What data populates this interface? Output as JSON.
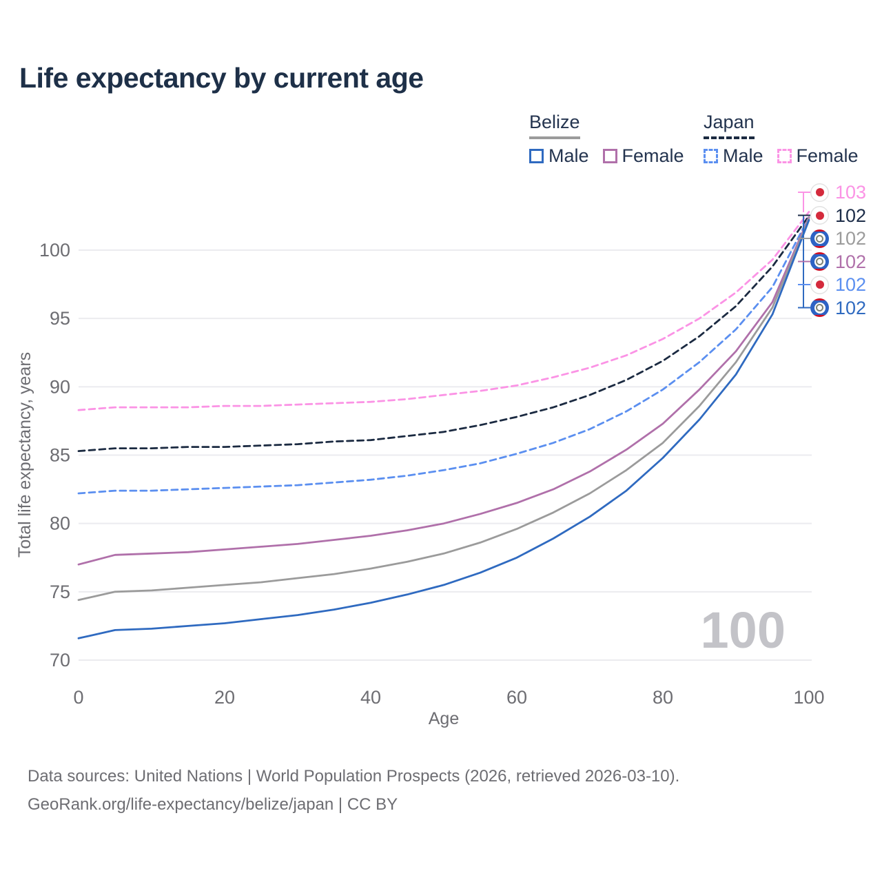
{
  "title": "Life expectancy by current age",
  "legend": {
    "belize": {
      "title": "Belize",
      "male": "Male",
      "female": "Female"
    },
    "japan": {
      "title": "Japan",
      "male": "Male",
      "female": "Female"
    }
  },
  "colors": {
    "belize_male": "#2f6ac0",
    "belize_female": "#b070aa",
    "belize_total": "#9b9b9b",
    "japan_male": "#5b8ff0",
    "japan_female": "#fb93e5",
    "japan_total": "#1b2a41",
    "axis_text": "#6d6d72",
    "gridline": "#ebebef",
    "title_text": "#1e3048"
  },
  "age_indicator": "100",
  "footer": {
    "line1": "Data sources: United Nations | World Population Prospects (2026, retrieved 2026-03-10).",
    "line2": "GeoRank.org/life-expectancy/belize/japan | CC BY"
  },
  "end_labels": [
    {
      "text": "103",
      "color": "#fb93e5",
      "flag": "jp",
      "series": "japan-female"
    },
    {
      "text": "102",
      "color": "#1d2d49",
      "flag": "jp",
      "series": "japan-total"
    },
    {
      "text": "102",
      "color": "#9b9b9b",
      "flag": "bz",
      "series": "belize-total"
    },
    {
      "text": "102",
      "color": "#b070aa",
      "flag": "bz",
      "series": "belize-female"
    },
    {
      "text": "102",
      "color": "#5b8ff0",
      "flag": "jp",
      "series": "japan-male"
    },
    {
      "text": "102",
      "color": "#2f6ac0",
      "flag": "bz",
      "series": "belize-male"
    }
  ],
  "chart_data": {
    "type": "line",
    "title": "Life expectancy by current age",
    "xlabel": "Age",
    "ylabel": "Total life expectancy, years",
    "xlim": [
      0,
      100
    ],
    "ylim": [
      70,
      103
    ],
    "xticks": [
      0,
      20,
      40,
      60,
      80,
      100
    ],
    "yticks": [
      70,
      75,
      80,
      85,
      90,
      95,
      100
    ],
    "grid": "horizontal",
    "legend_position": "top-right",
    "x": [
      0,
      5,
      10,
      15,
      20,
      25,
      30,
      35,
      40,
      45,
      50,
      55,
      60,
      65,
      70,
      75,
      80,
      85,
      90,
      95,
      100
    ],
    "series": [
      {
        "name": "Japan Female",
        "id": "japan-female",
        "color": "#fb93e5",
        "dashed": true,
        "values": [
          88.3,
          88.5,
          88.5,
          88.5,
          88.6,
          88.6,
          88.7,
          88.8,
          88.9,
          89.1,
          89.4,
          89.7,
          90.1,
          90.7,
          91.4,
          92.3,
          93.5,
          95.0,
          96.9,
          99.3,
          102.8
        ]
      },
      {
        "name": "Japan Total",
        "id": "japan-total",
        "color": "#1b2a41",
        "dashed": true,
        "values": [
          85.3,
          85.5,
          85.5,
          85.6,
          85.6,
          85.7,
          85.8,
          86.0,
          86.1,
          86.4,
          86.7,
          87.2,
          87.8,
          88.5,
          89.4,
          90.5,
          91.9,
          93.7,
          95.9,
          98.8,
          102.5
        ]
      },
      {
        "name": "Japan Male",
        "id": "japan-male",
        "color": "#5b8ff0",
        "dashed": true,
        "values": [
          82.2,
          82.4,
          82.4,
          82.5,
          82.6,
          82.7,
          82.8,
          83.0,
          83.2,
          83.5,
          83.9,
          84.4,
          85.1,
          85.9,
          86.9,
          88.2,
          89.8,
          91.8,
          94.2,
          97.3,
          102.4
        ]
      },
      {
        "name": "Belize Female",
        "id": "belize-female",
        "color": "#b070aa",
        "dashed": false,
        "values": [
          77.0,
          77.7,
          77.8,
          77.9,
          78.1,
          78.3,
          78.5,
          78.8,
          79.1,
          79.5,
          80.0,
          80.7,
          81.5,
          82.5,
          83.8,
          85.4,
          87.3,
          89.8,
          92.6,
          96.2,
          102.4
        ]
      },
      {
        "name": "Belize Total",
        "id": "belize-total",
        "color": "#9b9b9b",
        "dashed": false,
        "values": [
          74.4,
          75.0,
          75.1,
          75.3,
          75.5,
          75.7,
          76.0,
          76.3,
          76.7,
          77.2,
          77.8,
          78.6,
          79.6,
          80.8,
          82.2,
          83.9,
          85.9,
          88.6,
          91.8,
          95.8,
          102.3
        ]
      },
      {
        "name": "Belize Male",
        "id": "belize-male",
        "color": "#2f6ac0",
        "dashed": false,
        "values": [
          71.6,
          72.2,
          72.3,
          72.5,
          72.7,
          73.0,
          73.3,
          73.7,
          74.2,
          74.8,
          75.5,
          76.4,
          77.5,
          78.9,
          80.5,
          82.4,
          84.8,
          87.6,
          90.9,
          95.3,
          102.2
        ]
      }
    ]
  }
}
